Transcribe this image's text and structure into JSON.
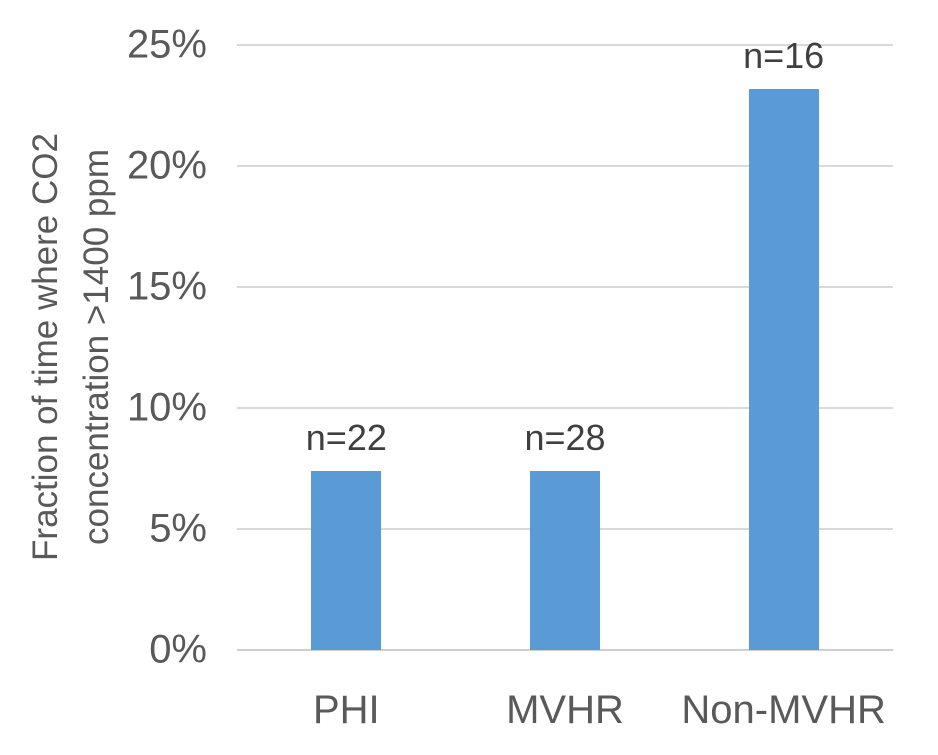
{
  "chart_data": {
    "type": "bar",
    "title": "",
    "categories": [
      "PHI",
      "MVHR",
      "Non-MVHR"
    ],
    "values": [
      7.4,
      7.4,
      23.2
    ],
    "bar_labels": [
      "n=22",
      "n=28",
      "n=16"
    ],
    "xlabel": "",
    "ylabel": "Fraction of time where CO2 concentration >1400 ppm",
    "ylabel_lines": [
      "Fraction of time where CO2",
      "concentration >1400 ppm"
    ],
    "ylim": [
      0,
      25
    ],
    "yticks": [
      0,
      5,
      10,
      15,
      20,
      25
    ],
    "ytick_labels": [
      "0%",
      "5%",
      "10%",
      "15%",
      "20%",
      "25%"
    ],
    "grid": true,
    "legend": false,
    "colors": {
      "bar": "#5B9BD5",
      "grid": "#D9D9D9",
      "axis_line": "#CFCFCF",
      "tick_text": "#595959",
      "data_label_text": "#3F3F3F",
      "axis_title_text": "#595959",
      "background": "#FFFFFF"
    }
  }
}
